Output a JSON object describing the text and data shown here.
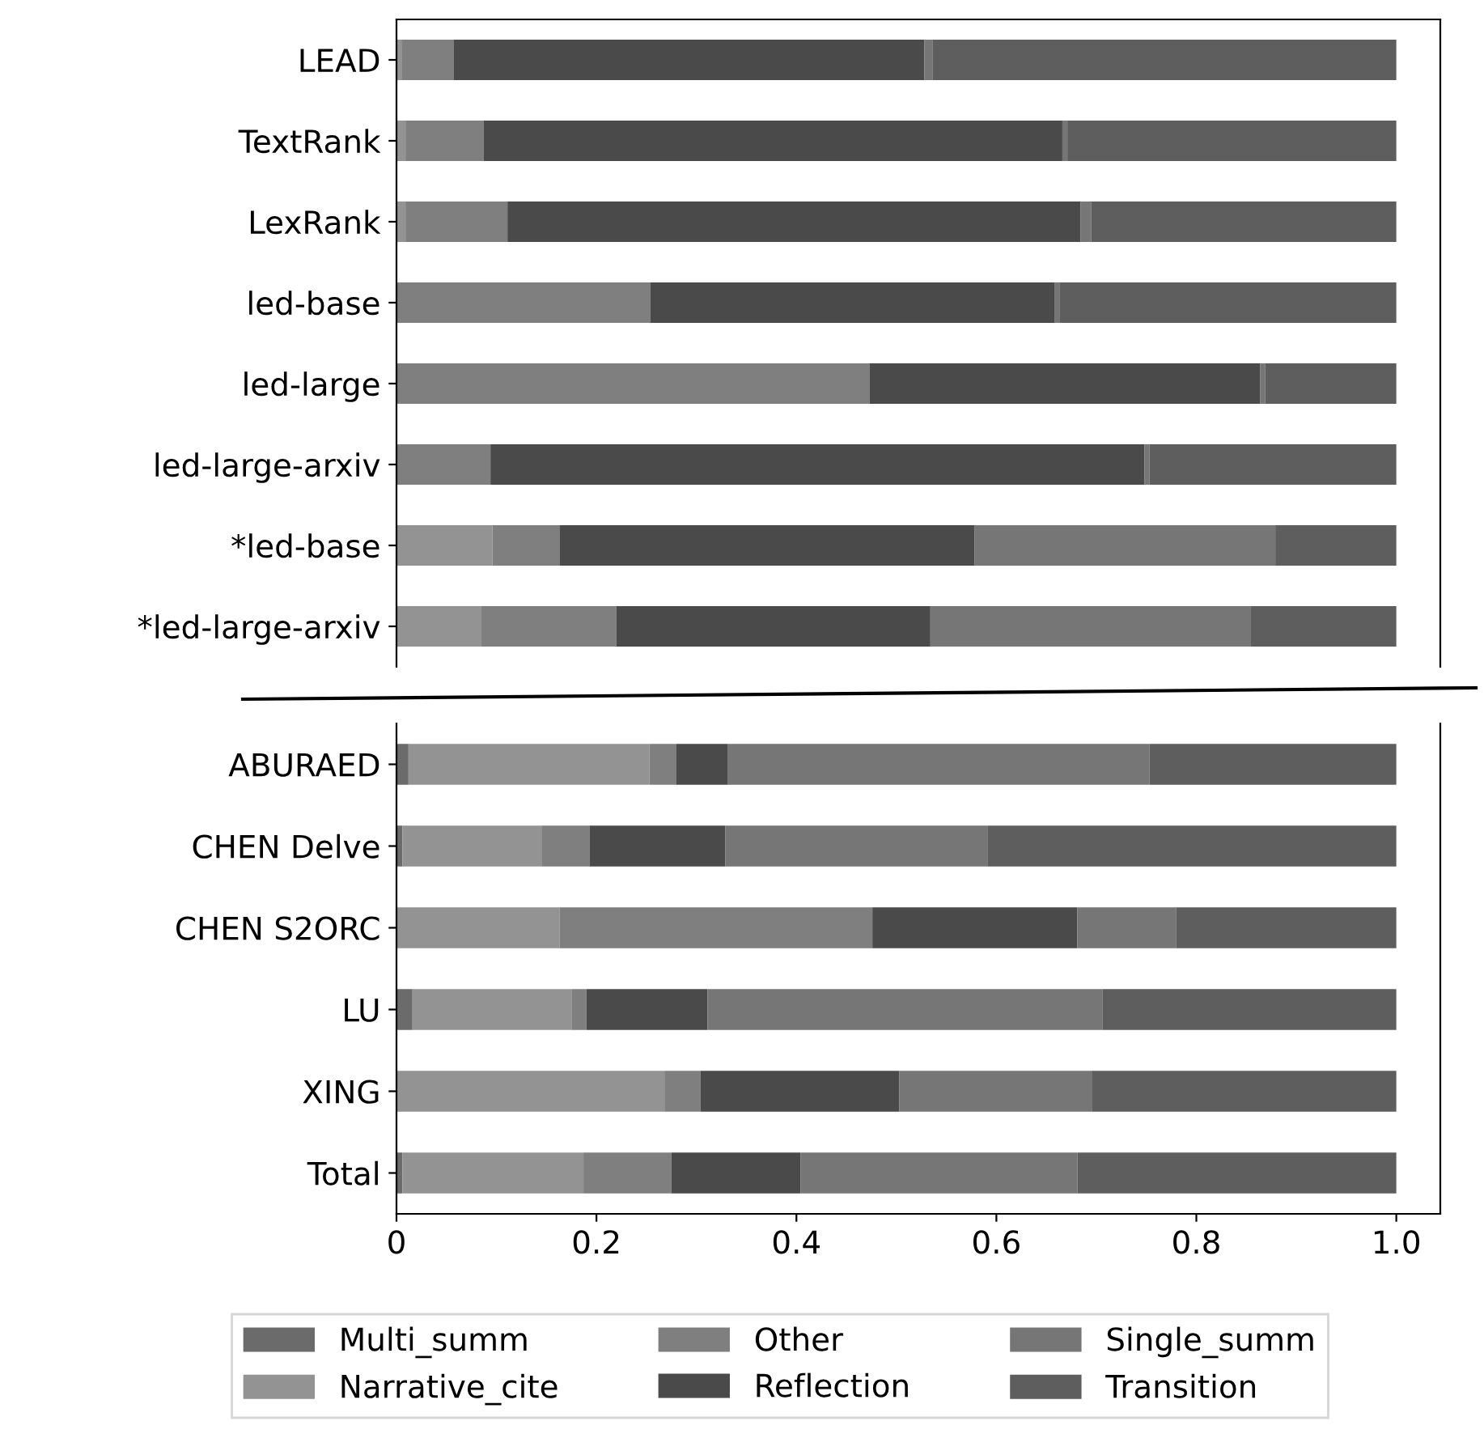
{
  "chart_data": [
    {
      "type": "bar",
      "orientation": "horizontal",
      "stacked": true,
      "categories": [
        "LEAD",
        "TextRank",
        "LexRank",
        "led-base",
        "led-large",
        "led-large-arxiv",
        "*led-base",
        "*led-large-arxiv"
      ],
      "xlim": [
        0,
        1.044
      ],
      "tick_labels": "y",
      "grid": false,
      "series": [
        {
          "color": "#6b6b6b",
          "values": [
            0,
            0,
            0,
            0,
            0,
            0,
            0,
            0
          ]
        },
        {
          "color": "#939393",
          "values": [
            0.005,
            0.009,
            0.009,
            0,
            0,
            0,
            0.096,
            0.085
          ]
        },
        {
          "color": "#7f7f7f",
          "values": [
            0.052,
            0.078,
            0.102,
            0.254,
            0.473,
            0.094,
            0.067,
            0.135
          ]
        },
        {
          "color": "#4a4a4a",
          "values": [
            0.471,
            0.579,
            0.573,
            0.404,
            0.391,
            0.654,
            0.415,
            0.314
          ]
        },
        {
          "color": "#767676",
          "values": [
            0.008,
            0.005,
            0.011,
            0.005,
            0.005,
            0.005,
            0.301,
            0.32
          ]
        },
        {
          "color": "#5e5e5e",
          "values": [
            0.464,
            0.329,
            0.305,
            0.337,
            0.131,
            0.247,
            0.121,
            0.146
          ]
        }
      ]
    },
    {
      "type": "bar",
      "orientation": "horizontal",
      "stacked": true,
      "categories": [
        "ABURAED",
        "CHEN Delve",
        "CHEN S2ORC",
        "LU",
        "XING",
        "Total"
      ],
      "xlim": [
        0,
        1.044
      ],
      "xticks": [
        0,
        0.2,
        0.4,
        0.6,
        0.8,
        {
          "value": 1.0,
          "label": "1.0"
        }
      ],
      "grid": false,
      "legend": "bottom",
      "series": [
        {
          "name": "Multi_summ",
          "color": "#6b6b6b",
          "values": [
            0.012,
            0.006,
            0,
            0.016,
            0,
            0.006
          ]
        },
        {
          "name": "Narrative_cite",
          "color": "#939393",
          "values": [
            0.241,
            0.139,
            0.163,
            0.159,
            0.268,
            0.181
          ]
        },
        {
          "name": "Other",
          "color": "#7f7f7f",
          "values": [
            0.027,
            0.048,
            0.313,
            0.015,
            0.036,
            0.088
          ]
        },
        {
          "name": "Reflection",
          "color": "#4a4a4a",
          "values": [
            0.051,
            0.136,
            0.205,
            0.121,
            0.199,
            0.129
          ]
        },
        {
          "name": "Single_summ",
          "color": "#767676",
          "values": [
            0.422,
            0.262,
            0.099,
            0.395,
            0.193,
            0.277
          ]
        },
        {
          "name": "Transition",
          "color": "#5e5e5e",
          "values": [
            0.247,
            0.409,
            0.22,
            0.294,
            0.304,
            0.319
          ]
        }
      ]
    }
  ]
}
